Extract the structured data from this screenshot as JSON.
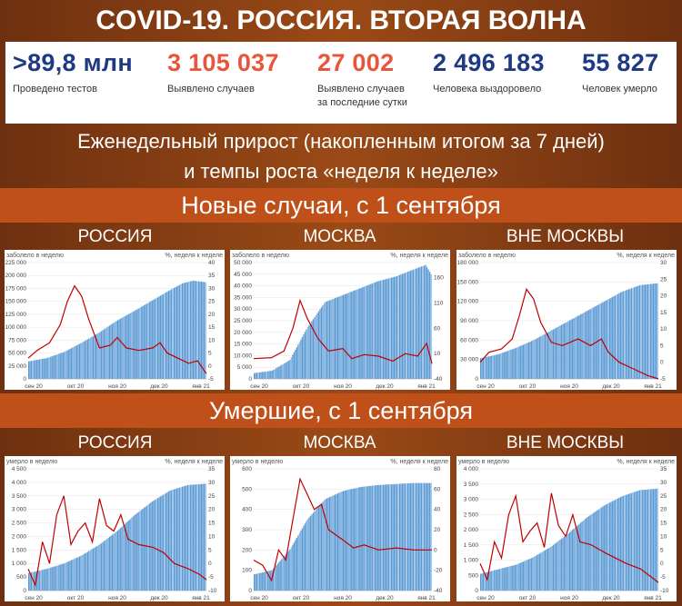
{
  "header": {
    "title": "COVID-19. РОССИЯ. ВТОРАЯ ВОЛНА"
  },
  "stats": [
    {
      "value": ">89,8 млн",
      "label": "Проведено тестов",
      "label2": "",
      "color": "#1d3a82"
    },
    {
      "value": "3 105 037",
      "label": "Выявлено случаев",
      "label2": "",
      "color": "#e8553a"
    },
    {
      "value": "27 002",
      "label": "Выявлено случаев",
      "label2": "за последние сутки",
      "color": "#e8553a"
    },
    {
      "value": "2 496 183",
      "label": "Человека выздоровело",
      "label2": "",
      "color": "#1d3a82"
    },
    {
      "value": "55 827",
      "label": "Человек умерло",
      "label2": "",
      "color": "#1d3a82"
    }
  ],
  "subtitle": {
    "line1": "Еженедельный прирост (накопленным итогом за 7 дней)",
    "line2": "и темпы роста «неделя к неделе»"
  },
  "sections": {
    "cases": "Новые случаи, с 1 сентября",
    "deaths": "Умершие, с 1 сентября"
  },
  "regions": [
    "РОССИЯ",
    "МОСКВА",
    "ВНЕ МОСКВЫ"
  ],
  "chart_data": [
    {
      "type": "bar",
      "section": "cases",
      "region": "РОССИЯ",
      "ylabel": "заболело в неделю",
      "y2label": "%, неделя к неделе",
      "ylim": [
        0,
        225000
      ],
      "yticks": [
        0,
        25000,
        50000,
        75000,
        100000,
        125000,
        150000,
        175000,
        200000,
        225000
      ],
      "y2lim": [
        -5,
        40
      ],
      "y2ticks": [
        -5,
        0,
        5,
        10,
        15,
        20,
        25,
        30,
        35,
        40
      ],
      "xticks": [
        "сен 20",
        "окт 20",
        "ноя 20",
        "дек 20",
        "янв 21"
      ],
      "bars": [
        [
          0,
          34000
        ],
        [
          0.1,
          40000
        ],
        [
          0.2,
          52000
        ],
        [
          0.3,
          70000
        ],
        [
          0.4,
          90000
        ],
        [
          0.5,
          113000
        ],
        [
          0.6,
          132000
        ],
        [
          0.7,
          152000
        ],
        [
          0.8,
          172000
        ],
        [
          0.87,
          185000
        ],
        [
          0.93,
          190000
        ],
        [
          1,
          187000
        ]
      ],
      "line": [
        [
          0,
          3
        ],
        [
          0.05,
          6
        ],
        [
          0.12,
          9
        ],
        [
          0.18,
          16
        ],
        [
          0.22,
          25
        ],
        [
          0.26,
          31
        ],
        [
          0.3,
          27
        ],
        [
          0.34,
          18
        ],
        [
          0.4,
          7
        ],
        [
          0.46,
          8
        ],
        [
          0.5,
          11
        ],
        [
          0.55,
          7
        ],
        [
          0.62,
          6
        ],
        [
          0.7,
          7
        ],
        [
          0.74,
          9
        ],
        [
          0.78,
          5
        ],
        [
          0.84,
          3
        ],
        [
          0.9,
          1
        ],
        [
          0.95,
          2
        ],
        [
          1,
          -3
        ]
      ]
    },
    {
      "type": "bar",
      "section": "cases",
      "region": "МОСКВА",
      "ylabel": "заболело в неделю",
      "y2label": "%, неделя к неделе",
      "ylim": [
        0,
        50000
      ],
      "yticks": [
        0,
        5000,
        10000,
        15000,
        20000,
        25000,
        30000,
        35000,
        40000,
        45000,
        50000
      ],
      "y2lim": [
        -40,
        190
      ],
      "y2ticks": [
        -40,
        10,
        60,
        110,
        160
      ],
      "xticks": [
        "сен 20",
        "окт 20",
        "ноя 20",
        "дек 20",
        "янв 21"
      ],
      "bars": [
        [
          0,
          2500
        ],
        [
          0.1,
          3500
        ],
        [
          0.2,
          8000
        ],
        [
          0.3,
          22000
        ],
        [
          0.4,
          33000
        ],
        [
          0.5,
          36000
        ],
        [
          0.6,
          39000
        ],
        [
          0.7,
          42000
        ],
        [
          0.8,
          44000
        ],
        [
          0.9,
          47000
        ],
        [
          0.97,
          49000
        ],
        [
          1,
          45000
        ]
      ],
      "line": [
        [
          0,
          0
        ],
        [
          0.1,
          2
        ],
        [
          0.17,
          15
        ],
        [
          0.22,
          60
        ],
        [
          0.26,
          115
        ],
        [
          0.3,
          80
        ],
        [
          0.36,
          40
        ],
        [
          0.42,
          15
        ],
        [
          0.5,
          20
        ],
        [
          0.55,
          0
        ],
        [
          0.62,
          8
        ],
        [
          0.7,
          5
        ],
        [
          0.78,
          -5
        ],
        [
          0.85,
          10
        ],
        [
          0.92,
          5
        ],
        [
          0.97,
          30
        ],
        [
          1,
          -10
        ]
      ]
    },
    {
      "type": "bar",
      "section": "cases",
      "region": "ВНЕ МОСКВЫ",
      "ylabel": "заболело в неделю",
      "y2label": "%, неделя к неделе",
      "ylim": [
        0,
        180000
      ],
      "yticks": [
        0,
        30000,
        60000,
        90000,
        120000,
        150000,
        180000
      ],
      "y2lim": [
        -5,
        30
      ],
      "y2ticks": [
        -5,
        0,
        5,
        10,
        15,
        20,
        25,
        30
      ],
      "xticks": [
        "сен 20",
        "окт 20",
        "ноя 20",
        "дек 20",
        "янв 21"
      ],
      "bars": [
        [
          0,
          32000
        ],
        [
          0.1,
          38000
        ],
        [
          0.2,
          48000
        ],
        [
          0.3,
          60000
        ],
        [
          0.4,
          75000
        ],
        [
          0.5,
          90000
        ],
        [
          0.6,
          105000
        ],
        [
          0.7,
          120000
        ],
        [
          0.8,
          135000
        ],
        [
          0.9,
          145000
        ],
        [
          1,
          148000
        ]
      ],
      "line": [
        [
          0,
          0
        ],
        [
          0.05,
          3
        ],
        [
          0.12,
          4
        ],
        [
          0.18,
          7
        ],
        [
          0.22,
          14
        ],
        [
          0.26,
          22
        ],
        [
          0.3,
          19
        ],
        [
          0.34,
          12
        ],
        [
          0.4,
          6
        ],
        [
          0.46,
          5
        ],
        [
          0.55,
          7
        ],
        [
          0.62,
          5
        ],
        [
          0.68,
          7
        ],
        [
          0.72,
          3
        ],
        [
          0.78,
          0
        ],
        [
          0.86,
          -2
        ],
        [
          0.94,
          -4
        ],
        [
          1,
          -5
        ]
      ]
    },
    {
      "type": "bar",
      "section": "deaths",
      "region": "РОССИЯ",
      "ylabel": "умерло в неделю",
      "y2label": "%, неделя к неделе",
      "ylim": [
        0,
        4500
      ],
      "yticks": [
        0,
        500,
        1000,
        1500,
        2000,
        2500,
        3000,
        3500,
        4000,
        4500
      ],
      "y2lim": [
        -10,
        35
      ],
      "y2ticks": [
        -10,
        -5,
        0,
        5,
        10,
        15,
        20,
        25,
        30,
        35
      ],
      "xticks": [
        "сен 20",
        "окт 20",
        "ноя 20",
        "дек 20",
        "янв 21"
      ],
      "bars": [
        [
          0,
          650
        ],
        [
          0.1,
          800
        ],
        [
          0.2,
          1000
        ],
        [
          0.3,
          1300
        ],
        [
          0.4,
          1700
        ],
        [
          0.5,
          2200
        ],
        [
          0.6,
          2800
        ],
        [
          0.7,
          3300
        ],
        [
          0.8,
          3700
        ],
        [
          0.9,
          3900
        ],
        [
          1,
          3950
        ]
      ],
      "line": [
        [
          0,
          -2
        ],
        [
          0.04,
          -8
        ],
        [
          0.08,
          8
        ],
        [
          0.12,
          0
        ],
        [
          0.16,
          18
        ],
        [
          0.2,
          25
        ],
        [
          0.24,
          7
        ],
        [
          0.28,
          12
        ],
        [
          0.32,
          15
        ],
        [
          0.36,
          8
        ],
        [
          0.4,
          24
        ],
        [
          0.44,
          14
        ],
        [
          0.48,
          12
        ],
        [
          0.52,
          18
        ],
        [
          0.56,
          9
        ],
        [
          0.62,
          7
        ],
        [
          0.7,
          6
        ],
        [
          0.76,
          4
        ],
        [
          0.82,
          0
        ],
        [
          0.9,
          -2
        ],
        [
          0.96,
          -4
        ],
        [
          1,
          -6
        ]
      ]
    },
    {
      "type": "bar",
      "section": "deaths",
      "region": "МОСКВА",
      "ylabel": "умерло в неделю",
      "y2label": "%, неделя к неделе",
      "ylim": [
        0,
        600
      ],
      "yticks": [
        0,
        100,
        200,
        300,
        400,
        500,
        600
      ],
      "y2lim": [
        -40,
        80
      ],
      "y2ticks": [
        -40,
        -20,
        0,
        20,
        40,
        60,
        80
      ],
      "xticks": [
        "сен 20",
        "окт 20",
        "ноя 20",
        "дек 20",
        "янв 21"
      ],
      "bars": [
        [
          0,
          80
        ],
        [
          0.1,
          100
        ],
        [
          0.2,
          200
        ],
        [
          0.3,
          350
        ],
        [
          0.4,
          450
        ],
        [
          0.5,
          490
        ],
        [
          0.6,
          510
        ],
        [
          0.7,
          520
        ],
        [
          0.8,
          525
        ],
        [
          0.9,
          530
        ],
        [
          1,
          530
        ]
      ],
      "line": [
        [
          0,
          -10
        ],
        [
          0.05,
          -15
        ],
        [
          0.1,
          -30
        ],
        [
          0.14,
          0
        ],
        [
          0.18,
          -10
        ],
        [
          0.22,
          30
        ],
        [
          0.26,
          70
        ],
        [
          0.3,
          55
        ],
        [
          0.34,
          40
        ],
        [
          0.38,
          45
        ],
        [
          0.42,
          20
        ],
        [
          0.5,
          10
        ],
        [
          0.56,
          2
        ],
        [
          0.62,
          5
        ],
        [
          0.7,
          0
        ],
        [
          0.8,
          2
        ],
        [
          0.9,
          0
        ],
        [
          1,
          0
        ]
      ]
    },
    {
      "type": "bar",
      "section": "deaths",
      "region": "ВНЕ МОСКВЫ",
      "ylabel": "умерло в неделю",
      "y2label": "%, неделя к неделе",
      "ylim": [
        0,
        4000
      ],
      "yticks": [
        0,
        500,
        1000,
        1500,
        2000,
        2500,
        3000,
        3500,
        4000
      ],
      "y2lim": [
        -10,
        35
      ],
      "y2ticks": [
        -10,
        -5,
        0,
        5,
        10,
        15,
        20,
        25,
        30,
        35
      ],
      "xticks": [
        "сен 20",
        "окт 20",
        "ноя 20",
        "дек 20",
        "янв 21"
      ],
      "bars": [
        [
          0,
          550
        ],
        [
          0.1,
          700
        ],
        [
          0.2,
          850
        ],
        [
          0.3,
          1100
        ],
        [
          0.4,
          1450
        ],
        [
          0.5,
          1900
        ],
        [
          0.6,
          2400
        ],
        [
          0.7,
          2800
        ],
        [
          0.8,
          3100
        ],
        [
          0.9,
          3300
        ],
        [
          1,
          3350
        ]
      ],
      "line": [
        [
          0,
          0
        ],
        [
          0.04,
          -6
        ],
        [
          0.08,
          8
        ],
        [
          0.12,
          2
        ],
        [
          0.16,
          18
        ],
        [
          0.2,
          25
        ],
        [
          0.24,
          8
        ],
        [
          0.28,
          12
        ],
        [
          0.32,
          15
        ],
        [
          0.36,
          6
        ],
        [
          0.4,
          26
        ],
        [
          0.44,
          14
        ],
        [
          0.48,
          10
        ],
        [
          0.52,
          18
        ],
        [
          0.56,
          8
        ],
        [
          0.62,
          7
        ],
        [
          0.7,
          4
        ],
        [
          0.76,
          2
        ],
        [
          0.82,
          0
        ],
        [
          0.9,
          -2
        ],
        [
          0.96,
          -5
        ],
        [
          1,
          -7
        ]
      ]
    }
  ]
}
